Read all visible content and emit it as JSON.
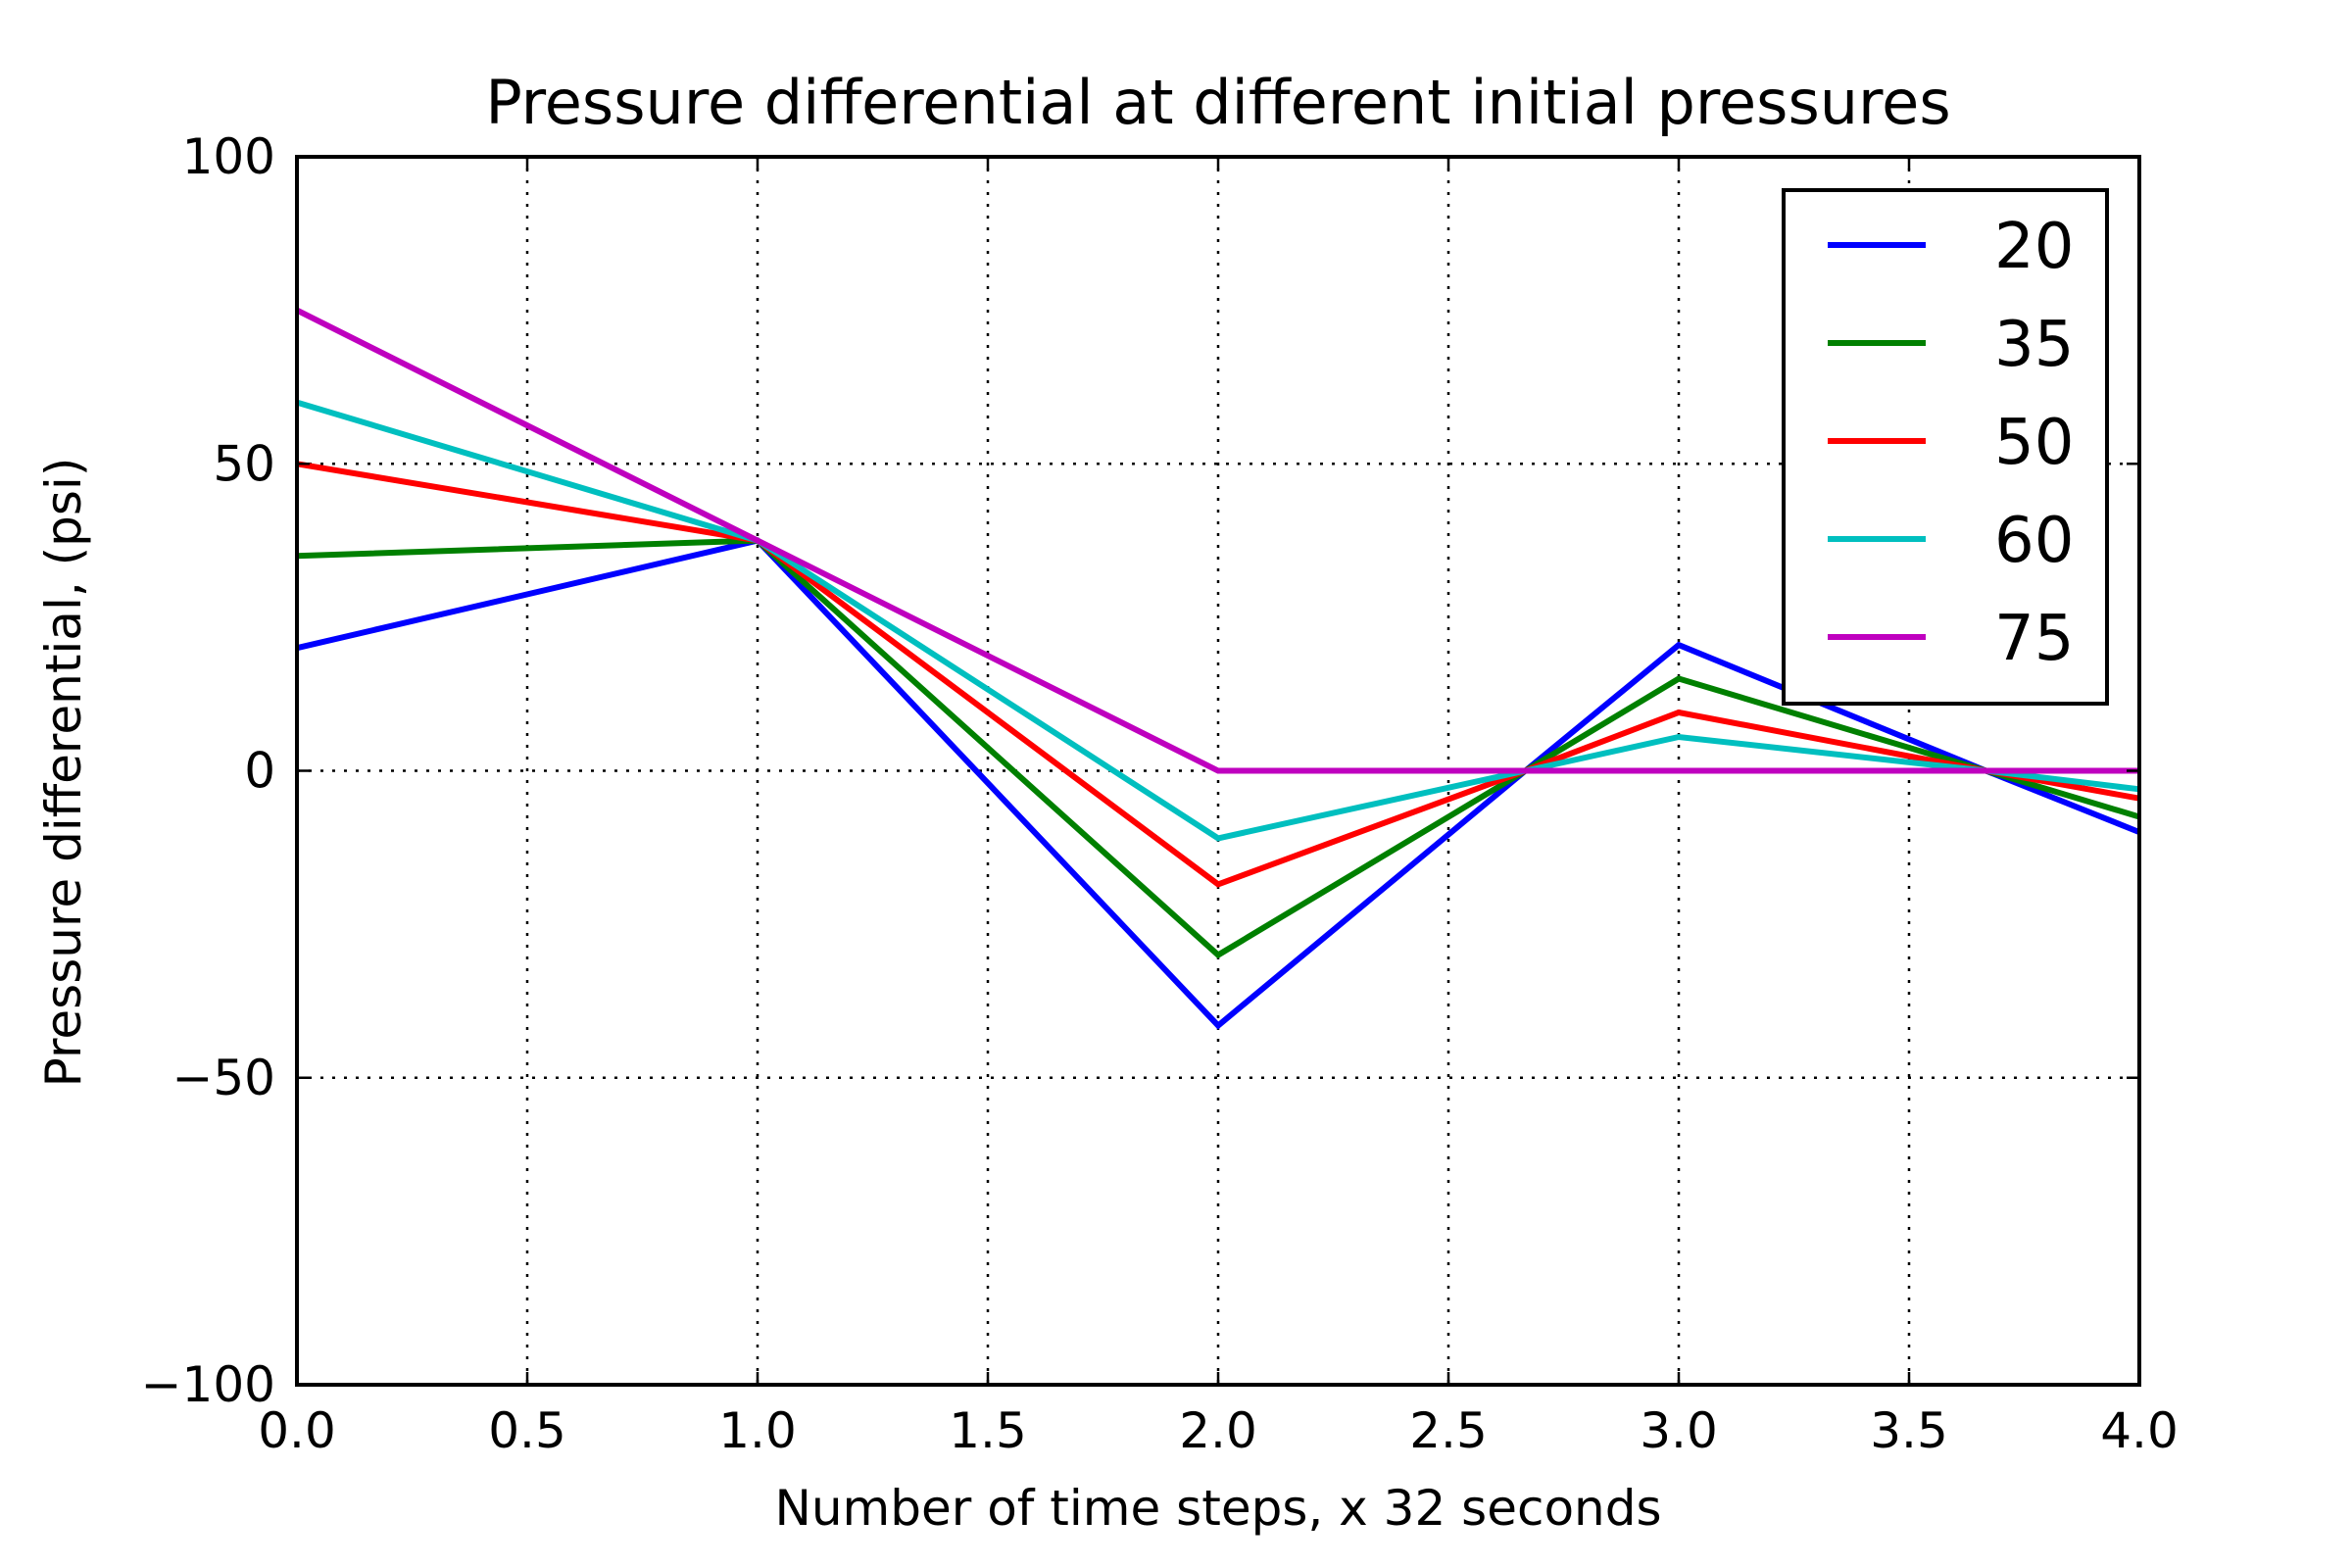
{
  "chart_data": {
    "type": "line",
    "title": "Pressure differential at different initial pressures",
    "xlabel": "Number of time steps, x 32 seconds",
    "ylabel": "Pressure differential, (psi)",
    "xlim": [
      0,
      4
    ],
    "ylim": [
      -100,
      100
    ],
    "xticks": [
      0,
      0.5,
      1,
      1.5,
      2,
      2.5,
      3,
      3.5,
      4
    ],
    "xtick_labels": [
      "0.0",
      "0.5",
      "1.0",
      "1.5",
      "2.0",
      "2.5",
      "3.0",
      "3.5",
      "4.0"
    ],
    "yticks": [
      -100,
      -50,
      0,
      50,
      100
    ],
    "ytick_labels": [
      "−100",
      "−50",
      "0",
      "50",
      "100"
    ],
    "grid": true,
    "legend_position": "top-right",
    "series": [
      {
        "name": "20",
        "color": "#0000ff",
        "x": [
          0,
          1,
          2,
          2.667,
          3,
          3.667,
          4
        ],
        "y": [
          20,
          37.5,
          -41.5,
          0,
          20.5,
          0,
          -10
        ]
      },
      {
        "name": "35",
        "color": "#008000",
        "x": [
          0,
          1,
          2,
          2.667,
          3,
          3.667,
          4
        ],
        "y": [
          35,
          37.5,
          -30,
          0,
          15,
          0,
          -7.5
        ]
      },
      {
        "name": "50",
        "color": "#ff0000",
        "x": [
          0,
          1,
          2,
          2.667,
          3,
          3.667,
          4
        ],
        "y": [
          50,
          37.5,
          -18.5,
          0,
          9.5,
          0,
          -4.5
        ]
      },
      {
        "name": "60",
        "color": "#00bfbf",
        "x": [
          0,
          1,
          2,
          2.667,
          3,
          3.667,
          4
        ],
        "y": [
          60,
          37.5,
          -11,
          0,
          5.5,
          0,
          -3
        ]
      },
      {
        "name": "75",
        "color": "#bf00bf",
        "x": [
          0,
          1,
          2,
          2.667,
          3,
          3.667,
          4
        ],
        "y": [
          75,
          37.5,
          0,
          0,
          0,
          0,
          0
        ]
      }
    ]
  }
}
